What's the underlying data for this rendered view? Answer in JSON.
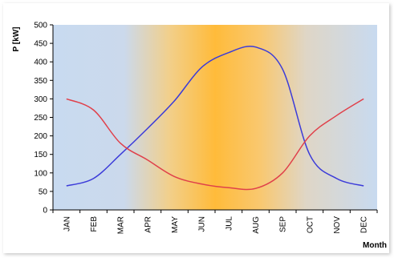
{
  "chart_data": {
    "type": "line",
    "title": "",
    "xlabel": "Month",
    "ylabel": "P [kW]",
    "categories": [
      "JAN",
      "FEB",
      "MAR",
      "APR",
      "MAY",
      "JUN",
      "JUL",
      "AUG",
      "SEP",
      "OCT",
      "NOV",
      "DEC"
    ],
    "ylim": [
      0,
      500
    ],
    "yticks": [
      0,
      50,
      100,
      150,
      200,
      250,
      300,
      350,
      400,
      450,
      500
    ],
    "grid": false,
    "legend": "none",
    "background": "gradient: blue at the sides, orange in the summer months",
    "series": [
      {
        "color": "#3b3bd9",
        "values": [
          65,
          85,
          150,
          220,
          295,
          385,
          425,
          440,
          380,
          150,
          85,
          65
        ]
      },
      {
        "color": "#e0404a",
        "values": [
          300,
          270,
          180,
          135,
          90,
          70,
          60,
          58,
          100,
          200,
          255,
          300
        ]
      }
    ]
  },
  "colors": {
    "background_blue": "#c6d8ef",
    "background_orange": "#ffb833",
    "axis": "#000000",
    "frame_shadow": "#c8c8c8"
  }
}
